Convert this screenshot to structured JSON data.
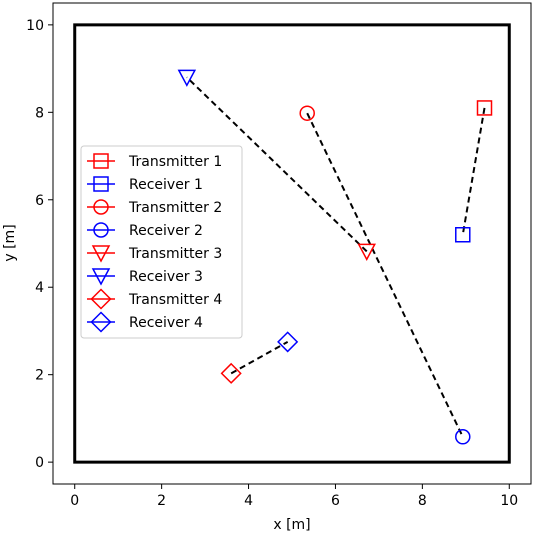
{
  "chart_data": {
    "type": "scatter",
    "title": "",
    "xlabel": "x [m]",
    "ylabel": "y [m]",
    "xlim": [
      -0.5,
      10.5
    ],
    "ylim": [
      -0.5,
      10.5
    ],
    "xticks": [
      "0",
      "2",
      "4",
      "6",
      "8",
      "10"
    ],
    "yticks": [
      "0",
      "2",
      "4",
      "6",
      "8",
      "10"
    ],
    "xtick_values": [
      0,
      2,
      4,
      6,
      8,
      10
    ],
    "ytick_values": [
      0,
      2,
      4,
      6,
      8,
      10
    ],
    "grid": false,
    "legend_placement": "center-left",
    "room": {
      "x": [
        0,
        10
      ],
      "y": [
        0,
        10
      ]
    },
    "colors": {
      "transmitter": "#ff0000",
      "receiver": "#0000ff",
      "link": "#000000",
      "frame": "#000000"
    },
    "series": [
      {
        "name": "Transmitter 1",
        "role": "transmitter",
        "marker": "square",
        "x": 9.43,
        "y": 8.1
      },
      {
        "name": "Receiver 1",
        "role": "receiver",
        "marker": "square",
        "x": 8.93,
        "y": 5.2
      },
      {
        "name": "Transmitter 2",
        "role": "transmitter",
        "marker": "circle",
        "x": 5.35,
        "y": 7.98
      },
      {
        "name": "Receiver 2",
        "role": "receiver",
        "marker": "circle",
        "x": 8.93,
        "y": 0.58
      },
      {
        "name": "Transmitter 3",
        "role": "transmitter",
        "marker": "triangle-down",
        "x": 6.72,
        "y": 4.82
      },
      {
        "name": "Receiver 3",
        "role": "receiver",
        "marker": "triangle-down",
        "x": 2.58,
        "y": 8.8
      },
      {
        "name": "Transmitter 4",
        "role": "transmitter",
        "marker": "diamond",
        "x": 3.6,
        "y": 2.03
      },
      {
        "name": "Receiver 4",
        "role": "receiver",
        "marker": "diamond",
        "x": 4.9,
        "y": 2.75
      }
    ],
    "links": [
      {
        "from": "Transmitter 1",
        "to": "Receiver 1"
      },
      {
        "from": "Transmitter 2",
        "to": "Receiver 2"
      },
      {
        "from": "Transmitter 3",
        "to": "Receiver 3"
      },
      {
        "from": "Transmitter 4",
        "to": "Receiver 4"
      }
    ]
  }
}
